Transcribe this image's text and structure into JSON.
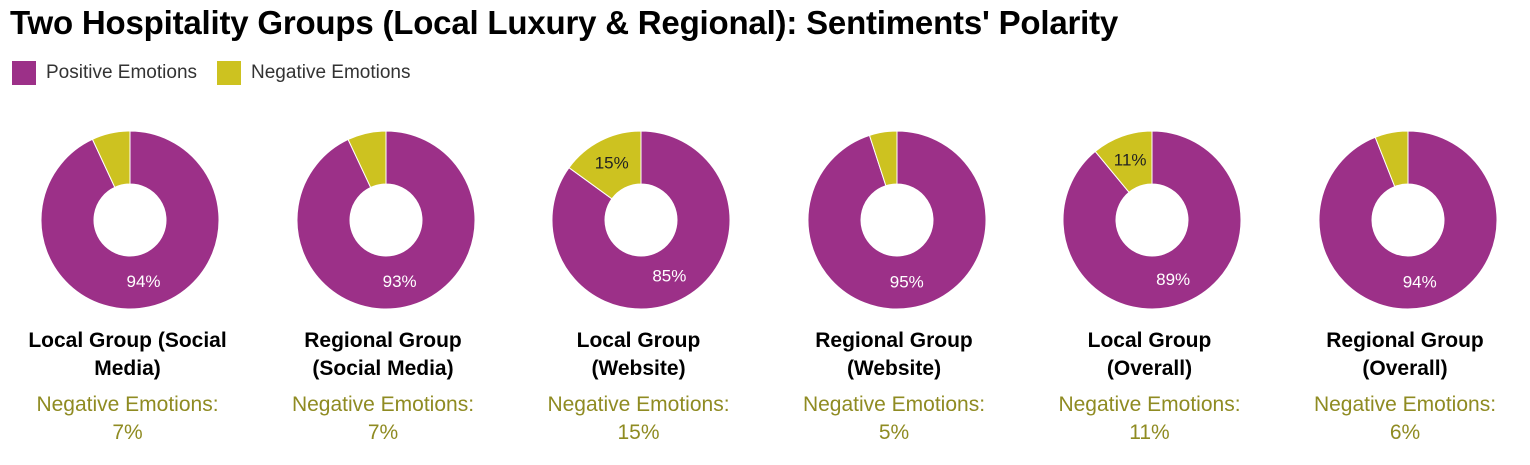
{
  "chart_data": {
    "type": "pie",
    "title": "Two Hospitality Groups (Local Luxury & Regional): Sentiments' Polarity",
    "legend": [
      "Positive Emotions",
      "Negative Emotions"
    ],
    "legend_position": "top-left",
    "colors": {
      "positive": "#9c3088",
      "negative": "#cdc220",
      "footer": "#8f8b22"
    },
    "charts": [
      {
        "name": "Local Group (Social Media)",
        "positive": 94,
        "negative": 7,
        "positive_label": "94%",
        "negative_label": "",
        "footer_label": "Negative Emotions:",
        "footer_value": "7%"
      },
      {
        "name": "Regional Group (Social Media)",
        "positive": 93,
        "negative": 7,
        "positive_label": "93%",
        "negative_label": "",
        "footer_label": "Negative Emotions:",
        "footer_value": "7%"
      },
      {
        "name": "Local Group (Website)",
        "positive": 85,
        "negative": 15,
        "positive_label": "85%",
        "negative_label": "15%",
        "footer_label": "Negative Emotions:",
        "footer_value": "15%"
      },
      {
        "name": "Regional Group (Website)",
        "positive": 95,
        "negative": 5,
        "positive_label": "95%",
        "negative_label": "",
        "footer_label": "Negative Emotions:",
        "footer_value": "5%"
      },
      {
        "name": "Local Group (Overall)",
        "positive": 89,
        "negative": 11,
        "positive_label": "89%",
        "negative_label": "11%",
        "footer_label": "Negative Emotions:",
        "footer_value": "11%"
      },
      {
        "name": "Regional Group (Overall)",
        "positive": 94,
        "negative": 6,
        "positive_label": "94%",
        "negative_label": "",
        "footer_label": "Negative Emotions:",
        "footer_value": "6%"
      }
    ]
  }
}
